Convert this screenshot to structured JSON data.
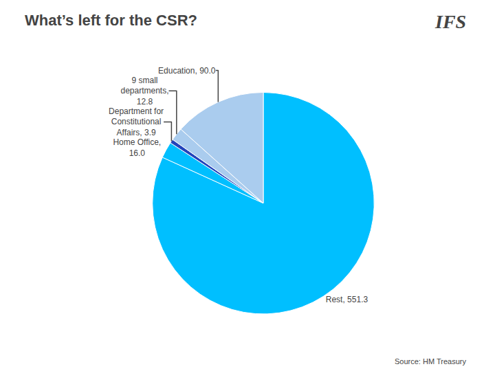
{
  "chart_data": {
    "type": "pie",
    "title": "What’s left for the CSR?",
    "categories": [
      "Rest, 551.3",
      "Home Office,\n16.0",
      "Department for\nConstitutional\nAffairs, 3.9",
      "9 small\ndepartments,\n12.8",
      "Education, 90.0"
    ],
    "values": [
      551.3,
      16.0,
      3.9,
      12.8,
      90.0
    ],
    "colors": [
      "#00bfff",
      "#00bfff",
      "#2244bb",
      "#aaccee",
      "#aaccee"
    ],
    "annotations": [
      "IFS",
      "Source: HM Treasury"
    ]
  }
}
